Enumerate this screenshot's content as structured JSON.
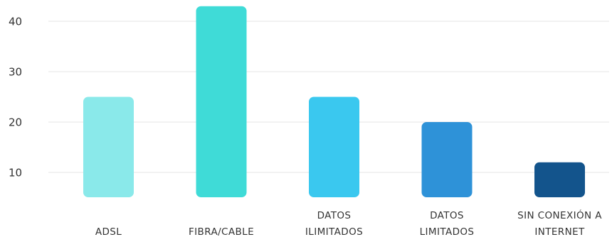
{
  "chart_data": {
    "type": "bar",
    "title": "",
    "xlabel": "",
    "ylabel": "",
    "categories": [
      [
        "ADSL"
      ],
      [
        "FIBRA/CABLE"
      ],
      [
        "DATOS",
        "ILIMITADOS"
      ],
      [
        "DATOS",
        "LIMITADOS"
      ],
      [
        "SIN CONEXIÓN A",
        "INTERNET"
      ]
    ],
    "values": [
      25,
      43,
      25,
      20,
      12
    ],
    "colors": [
      "#8ae9ea",
      "#3fdbd7",
      "#3ac8ef",
      "#2e92d8",
      "#13548c"
    ],
    "yticks": [
      10,
      20,
      30,
      40
    ],
    "ylim": [
      5,
      45
    ],
    "grid": true,
    "legend": "none"
  }
}
